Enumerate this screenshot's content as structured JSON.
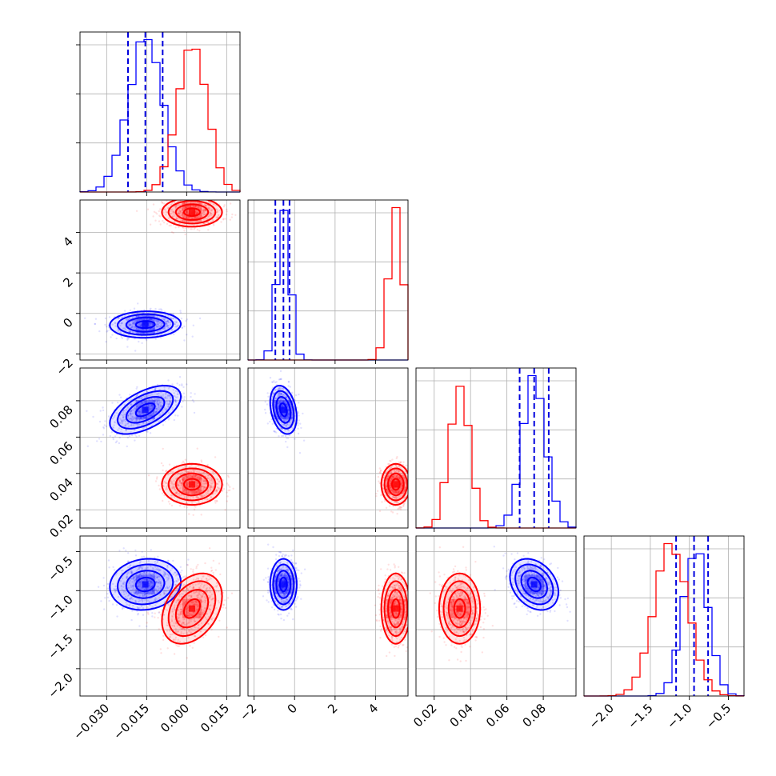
{
  "chart_data": {
    "type": "corner",
    "colors": {
      "blue": "#0000ff",
      "red": "#ff0000",
      "grid": "#b0b0b0"
    },
    "grid": true,
    "params": [
      {
        "index": 0,
        "range": [
          -0.04,
          0.02
        ],
        "ticks": [
          -0.03,
          -0.015,
          0.0,
          0.015
        ],
        "tick_labels": [
          "−0.030",
          "−0.015",
          "0.000",
          "0.015"
        ]
      },
      {
        "index": 1,
        "range": [
          -2.3,
          5.6
        ],
        "ticks": [
          -2,
          0,
          2,
          4
        ],
        "tick_labels": [
          "−2",
          "0",
          "2",
          "4"
        ]
      },
      {
        "index": 2,
        "range": [
          0.01,
          0.098
        ],
        "ticks": [
          0.02,
          0.04,
          0.06,
          0.08
        ],
        "tick_labels": [
          "0.02",
          "0.04",
          "0.06",
          "0.08"
        ]
      },
      {
        "index": 3,
        "range": [
          -2.35,
          -0.3
        ],
        "ticks": [
          -2.0,
          -1.5,
          -1.0,
          -0.5
        ],
        "tick_labels": [
          "−2.0",
          "−1.5",
          "−1.0",
          "−0.5"
        ]
      }
    ],
    "series": [
      {
        "color": "blue",
        "means": [
          -0.0155,
          -0.55,
          0.075,
          -0.92
        ],
        "sds": [
          0.0065,
          0.32,
          0.0065,
          0.16
        ],
        "corr": [
          [
            0,
            1,
            0.05
          ],
          [
            0,
            2,
            0.55
          ],
          [
            0,
            3,
            0.1
          ],
          [
            1,
            2,
            -0.3
          ],
          [
            1,
            3,
            0.0
          ],
          [
            2,
            3,
            -0.3
          ]
        ],
        "quantiles": [
          [
            -0.022,
            -0.0155,
            -0.009
          ],
          [
            -0.95,
            -0.55,
            -0.25
          ],
          [
            0.067,
            0.075,
            0.083
          ],
          [
            -1.17,
            -0.94,
            -0.76
          ]
        ]
      },
      {
        "color": "red",
        "means": [
          0.002,
          5.0,
          0.034,
          -1.23
        ],
        "sds": [
          0.0055,
          0.35,
          0.0055,
          0.22
        ],
        "corr": [
          [
            0,
            1,
            0.0
          ],
          [
            0,
            2,
            0.0
          ],
          [
            0,
            3,
            0.35
          ],
          [
            1,
            2,
            0.0
          ],
          [
            1,
            3,
            0.0
          ],
          [
            2,
            3,
            0.0
          ]
        ],
        "quantiles": []
      }
    ]
  }
}
